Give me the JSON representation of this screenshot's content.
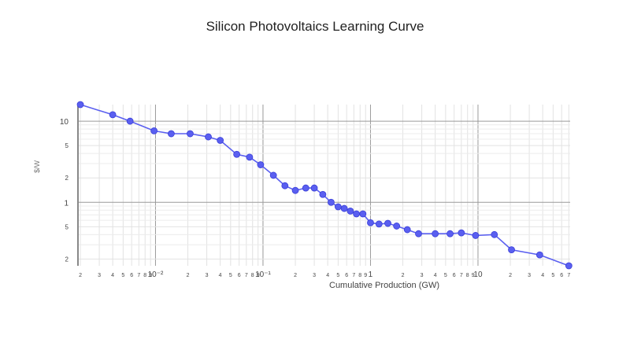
{
  "chart_data": {
    "type": "line",
    "title": "Silicon Photovoltaics Learning Curve",
    "xlabel": "Cumulative Production (GW)",
    "ylabel": "$/W",
    "xscale": "log",
    "yscale": "log",
    "xlim": [
      0.0019,
      72
    ],
    "ylim": [
      0.165,
      16
    ],
    "grid": true,
    "legend": "none",
    "color": "#5a5ff0",
    "x_tick_labels": [
      {
        "v": 0.002,
        "t": "2"
      },
      {
        "v": 0.003,
        "t": "3"
      },
      {
        "v": 0.004,
        "t": "4"
      },
      {
        "v": 0.005,
        "t": "5"
      },
      {
        "v": 0.006,
        "t": "6"
      },
      {
        "v": 0.007,
        "t": "7"
      },
      {
        "v": 0.008,
        "t": "8"
      },
      {
        "v": 0.009,
        "t": "9"
      },
      {
        "v": 0.01,
        "t": "10⁻²",
        "major": true
      },
      {
        "v": 0.02,
        "t": "2"
      },
      {
        "v": 0.03,
        "t": "3"
      },
      {
        "v": 0.04,
        "t": "4"
      },
      {
        "v": 0.05,
        "t": "5"
      },
      {
        "v": 0.06,
        "t": "6"
      },
      {
        "v": 0.07,
        "t": "7"
      },
      {
        "v": 0.08,
        "t": "8"
      },
      {
        "v": 0.09,
        "t": "9"
      },
      {
        "v": 0.1,
        "t": "10⁻¹",
        "major": true
      },
      {
        "v": 0.2,
        "t": "2"
      },
      {
        "v": 0.3,
        "t": "3"
      },
      {
        "v": 0.4,
        "t": "4"
      },
      {
        "v": 0.5,
        "t": "5"
      },
      {
        "v": 0.6,
        "t": "6"
      },
      {
        "v": 0.7,
        "t": "7"
      },
      {
        "v": 0.8,
        "t": "8"
      },
      {
        "v": 0.9,
        "t": "9"
      },
      {
        "v": 1,
        "t": "1",
        "major": true
      },
      {
        "v": 2,
        "t": "2"
      },
      {
        "v": 3,
        "t": "3"
      },
      {
        "v": 4,
        "t": "4"
      },
      {
        "v": 5,
        "t": "5"
      },
      {
        "v": 6,
        "t": "6"
      },
      {
        "v": 7,
        "t": "7"
      },
      {
        "v": 8,
        "t": "8"
      },
      {
        "v": 9,
        "t": "9"
      },
      {
        "v": 10,
        "t": "10",
        "major": true
      },
      {
        "v": 20,
        "t": "2"
      },
      {
        "v": 30,
        "t": "3"
      },
      {
        "v": 40,
        "t": "4"
      },
      {
        "v": 50,
        "t": "5"
      },
      {
        "v": 60,
        "t": "6"
      },
      {
        "v": 70,
        "t": "7"
      }
    ],
    "y_tick_labels": [
      {
        "v": 10,
        "t": "10",
        "major": true
      },
      {
        "v": 5,
        "t": "5"
      },
      {
        "v": 2,
        "t": "2"
      },
      {
        "v": 1,
        "t": "1",
        "major": true
      },
      {
        "v": 0.5,
        "t": "5"
      },
      {
        "v": 0.2,
        "t": "2"
      }
    ],
    "y_minor_grid": [
      9,
      8,
      7,
      6,
      4,
      3,
      0.9,
      0.8,
      0.7,
      0.6,
      0.4,
      0.3
    ],
    "series": [
      {
        "x": [
          0.002,
          0.004,
          0.0058,
          0.0097,
          0.014,
          0.021,
          0.031,
          0.04,
          0.057,
          0.075,
          0.095,
          0.125,
          0.16,
          0.2,
          0.25,
          0.3,
          0.36,
          0.43,
          0.5,
          0.57,
          0.65,
          0.74,
          0.85,
          1.0,
          1.2,
          1.45,
          1.75,
          2.2,
          2.8,
          4.0,
          5.5,
          7.0,
          9.5,
          14.2,
          20.5,
          37.5,
          70
        ],
        "y": [
          16,
          12,
          10,
          7.6,
          7.0,
          7.0,
          6.4,
          5.8,
          3.9,
          3.6,
          2.9,
          2.15,
          1.6,
          1.4,
          1.5,
          1.5,
          1.25,
          1.0,
          0.88,
          0.84,
          0.78,
          0.72,
          0.72,
          0.56,
          0.54,
          0.55,
          0.51,
          0.46,
          0.41,
          0.41,
          0.41,
          0.42,
          0.39,
          0.4,
          0.26,
          0.225,
          0.165
        ]
      }
    ]
  }
}
